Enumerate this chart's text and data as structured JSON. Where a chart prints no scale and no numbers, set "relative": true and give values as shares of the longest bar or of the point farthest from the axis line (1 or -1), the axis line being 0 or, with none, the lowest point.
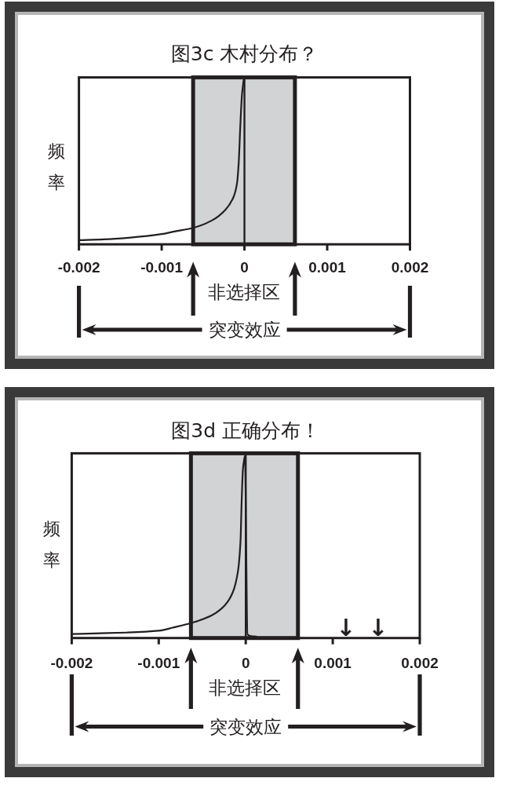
{
  "chart_data": [
    {
      "type": "line",
      "title": "图3c 木村分布？",
      "ylabel": "频率",
      "relative": true,
      "xlim": [
        -0.002,
        0.002
      ],
      "xticks": [
        -0.002,
        -0.001,
        0,
        0.001,
        0.002
      ],
      "x": [
        -0.002,
        -0.0017,
        -0.0014,
        -0.001,
        -0.00086,
        -0.00062,
        -0.00039,
        -0.00023,
        -0.00013,
        -9e-05,
        -7e-05,
        -5e-05,
        -3e-05,
        -1e-05
      ],
      "series": [
        {
          "color": "#231f20",
          "values": [
            0.025,
            0.03,
            0.04,
            0.062,
            0.077,
            0.1,
            0.146,
            0.21,
            0.29,
            0.37,
            0.49,
            0.72,
            0.91,
            1
          ]
        }
      ],
      "bands": [
        {
          "axis": "x",
          "from": -0.00062,
          "to": 0.00061,
          "label": "非选择区",
          "color": "#d1d3d4"
        }
      ],
      "ref_lines": [
        {
          "axis": "x",
          "value": 0
        }
      ],
      "annotations": [
        "突变效应"
      ]
    },
    {
      "type": "line",
      "title": "图3d 正确分布！",
      "ylabel": "频率",
      "relative": true,
      "xlim": [
        -0.002,
        0.002
      ],
      "xticks": [
        -0.002,
        -0.001,
        0,
        0.001,
        0.002
      ],
      "x": [
        -0.002,
        -0.00167,
        -0.00137,
        -0.001,
        -0.00084,
        -0.00061,
        -0.00039,
        -0.00024,
        -0.00015,
        -9e-05,
        -6e-05,
        -4.7e-05,
        -3.2e-05,
        -2e-05,
        -1e-05,
        2e-05,
        6e-05,
        0.00012,
        0.00014
      ],
      "series": [
        {
          "color": "#231f20",
          "values": [
            0.022,
            0.026,
            0.03,
            0.04,
            0.057,
            0.085,
            0.125,
            0.18,
            0.25,
            0.365,
            0.535,
            0.75,
            0.93,
            0.975,
            1,
            0.02,
            0.01,
            0.008,
            0
          ]
        }
      ],
      "bands": [
        {
          "axis": "x",
          "from": -0.00063,
          "to": 0.0006,
          "label": "非选择区",
          "color": "#d1d3d4"
        }
      ],
      "ref_lines": [
        {
          "axis": "x",
          "value": 0
        }
      ],
      "annotations": [
        "突变效应",
        "↓",
        "↓"
      ]
    }
  ]
}
